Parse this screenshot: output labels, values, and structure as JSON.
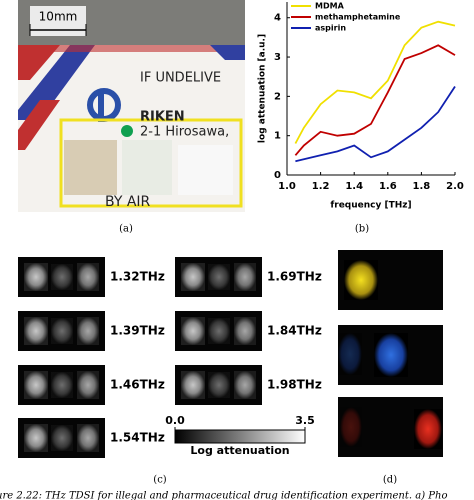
{
  "panel_a": {
    "scale_bar": "10mm",
    "envelope_lines": [
      "IF UNDELIVE",
      "RIKEN",
      "2-1 Hirosawa,",
      "BY AIR"
    ],
    "label": "(a)"
  },
  "chart_data": {
    "type": "line",
    "panel_label": "(b)",
    "x_label": "frequency [THz]",
    "y_label": "log attenuation [a.u.]",
    "x": [
      1.05,
      1.1,
      1.2,
      1.3,
      1.4,
      1.5,
      1.6,
      1.7,
      1.8,
      1.9,
      2.0
    ],
    "series": [
      {
        "name": "MDMA",
        "color": "#f0e000",
        "values": [
          0.8,
          1.2,
          1.8,
          2.15,
          2.1,
          1.95,
          2.4,
          3.3,
          3.75,
          3.9,
          3.8
        ]
      },
      {
        "name": "methamphetamine",
        "color": "#c00000",
        "values": [
          0.5,
          0.75,
          1.1,
          1.0,
          1.05,
          1.3,
          2.1,
          2.95,
          3.1,
          3.3,
          3.05
        ]
      },
      {
        "name": "aspirin",
        "color": "#1020b0",
        "values": [
          0.35,
          0.4,
          0.5,
          0.6,
          0.75,
          0.45,
          0.6,
          0.9,
          1.2,
          1.6,
          2.25
        ]
      }
    ],
    "xlim": [
      1.0,
      2.0
    ],
    "xticks": [
      {
        "value": 1.0,
        "label": "1.0"
      },
      1.2,
      1.4,
      1.6,
      1.8,
      {
        "value": 2.0,
        "label": "2.0"
      }
    ],
    "ylim": [
      0,
      4.4
    ],
    "yticks": [
      0,
      1,
      2,
      3,
      4
    ],
    "legend": "upper left"
  },
  "panel_c": {
    "frequencies": [
      "1.32THz",
      "1.39THz",
      "1.46THz",
      "1.54THz",
      "1.69THz",
      "1.84THz",
      "1.98THz"
    ],
    "colorbar": {
      "min": "0.0",
      "max": "3.5",
      "label": "Log attenuation"
    },
    "label": "(c)"
  },
  "panel_d": {
    "label": "(d)"
  },
  "caption": "ure 2.22: THz TDSI for illegal and pharmaceutical drug identification experiment. a) Pho"
}
